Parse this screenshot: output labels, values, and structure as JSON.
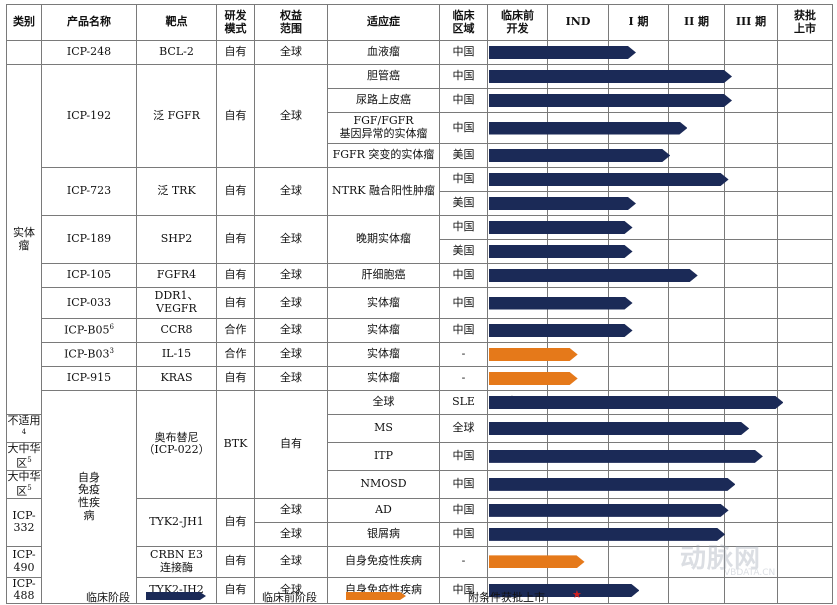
{
  "headers": {
    "category": "类别",
    "product": "产品名称",
    "target": "靶点",
    "model": "研发\n模式",
    "rights": "权益\n范围",
    "indication": "适应症",
    "region": "临床\n区域",
    "preclinical": "临床前\n开发",
    "ind": "IND",
    "phase1": "I 期",
    "phase2": "II 期",
    "phase3": "III 期",
    "approved": "获批\n上市"
  },
  "categories": {
    "heme": "",
    "solid": "实体\n瘤",
    "autoimmune": "自身\n免疫\n性疾\n病"
  },
  "rows": [
    {
      "product": "ICP-248",
      "target": "BCL-2",
      "model": "自有",
      "rights": "全球",
      "indication": "血液瘤",
      "region": "中国",
      "stage": "clinical",
      "progress": 0.43
    },
    {
      "product": "ICP-192",
      "target": "泛 FGFR",
      "model": "自有",
      "rights": "全球",
      "indication": "胆管癌",
      "region": "中国",
      "stage": "clinical",
      "progress": 0.71
    },
    {
      "indication": "尿路上皮癌",
      "region": "中国",
      "stage": "clinical",
      "progress": 0.71
    },
    {
      "indication": "FGF/FGFR\n基因异常的实体瘤",
      "region": "中国",
      "stage": "clinical",
      "progress": 0.58
    },
    {
      "indication": "FGFR 突变的实体瘤",
      "region": "美国",
      "stage": "clinical",
      "progress": 0.53
    },
    {
      "product": "ICP-723",
      "target": "泛 TRK",
      "model": "自有",
      "rights": "全球",
      "indication": "NTRK 融合阳性肿瘤",
      "region": "中国",
      "stage": "clinical",
      "progress": 0.7
    },
    {
      "region": "美国",
      "stage": "clinical",
      "progress": 0.43
    },
    {
      "product": "ICP-189",
      "target": "SHP2",
      "model": "自有",
      "rights": "全球",
      "indication": "晚期实体瘤",
      "region": "中国",
      "stage": "clinical",
      "progress": 0.42
    },
    {
      "region": "美国",
      "stage": "clinical",
      "progress": 0.42
    },
    {
      "product": "ICP-105",
      "target": "FGFR4",
      "model": "自有",
      "rights": "全球",
      "indication": "肝细胞癌",
      "region": "中国",
      "stage": "clinical",
      "progress": 0.61
    },
    {
      "product": "ICP-033",
      "target": "DDR1、\nVEGFR",
      "model": "自有",
      "rights": "全球",
      "indication": "实体瘤",
      "region": "中国",
      "stage": "clinical",
      "progress": 0.42
    },
    {
      "product": "ICP-B05",
      "product_sup": "6",
      "target": "CCR8",
      "model": "合作",
      "rights": "全球",
      "indication": "实体瘤",
      "region": "中国",
      "stage": "clinical",
      "progress": 0.42
    },
    {
      "product": "ICP-B03",
      "product_sup": "3",
      "target": "IL-15",
      "model": "合作",
      "rights": "全球",
      "indication": "实体瘤",
      "region": "-",
      "stage": "preclinical",
      "progress": 0.26
    },
    {
      "product": "ICP-915",
      "target": "KRAS",
      "model": "自有",
      "rights": "全球",
      "indication": "实体瘤",
      "region": "-",
      "stage": "preclinical",
      "progress": 0.26
    },
    {
      "product": "奥布替尼\n（ICP-022）",
      "target": "BTK",
      "model": "自有",
      "rights": "全球",
      "indication": "SLE",
      "region": "中国",
      "stage": "clinical",
      "progress": 0.86
    },
    {
      "rights": "不适用",
      "rights_sup": "4",
      "indication": "MS",
      "region": "全球",
      "stage": "clinical",
      "progress": 0.76
    },
    {
      "rights": "大中华区",
      "rights_sup": "5",
      "indication": "ITP",
      "region": "中国",
      "stage": "clinical",
      "progress": 0.8
    },
    {
      "rights": "大中华区",
      "rights_sup": "5",
      "indication": "NMOSD",
      "region": "中国",
      "stage": "clinical",
      "progress": 0.72
    },
    {
      "product": "ICP-332",
      "target": "TYK2-JH1",
      "model": "自有",
      "rights": "全球",
      "indication": "AD",
      "region": "中国",
      "stage": "clinical",
      "progress": 0.7
    },
    {
      "rights": "全球",
      "indication": "银屑病",
      "region": "中国",
      "stage": "clinical",
      "progress": 0.69
    },
    {
      "product": "ICP-490",
      "target": "CRBN E3\n连接酶",
      "model": "自有",
      "rights": "全球",
      "indication": "自身免疫性疾病",
      "region": "-",
      "stage": "preclinical",
      "progress": 0.28
    },
    {
      "product": "ICP-488",
      "target": "TYK2-JH2",
      "model": "自有",
      "rights": "全球",
      "indication": "自身免疫性疾病",
      "region": "中国",
      "stage": "clinical",
      "progress": 0.44
    }
  ],
  "legend": {
    "clinical": "临床阶段",
    "preclinical": "临床前阶段",
    "conditional": "附条件获批上市",
    "clinical_color": "#1b2a57",
    "preclinical_color": "#e5791a",
    "star_color": "#d12020"
  },
  "watermark": {
    "name": "动脉网",
    "url": "VBDATA.CN"
  }
}
